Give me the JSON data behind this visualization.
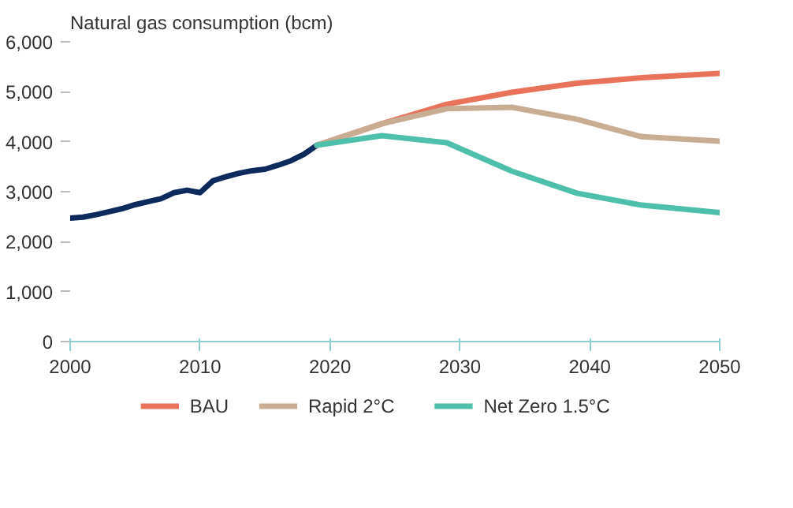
{
  "chart_data": {
    "type": "line",
    "ylabel": "Natural gas consumption (bcm)",
    "xlim": [
      2000,
      2050
    ],
    "xticks": [
      2000,
      2010,
      2020,
      2030,
      2040,
      2050
    ],
    "ylim": [
      0,
      6000
    ],
    "yticks": [
      {
        "value": 0,
        "label": "0"
      },
      {
        "value": 1000,
        "label": "1,000"
      },
      {
        "value": 2000,
        "label": "2,000"
      },
      {
        "value": 3000,
        "label": "3,000"
      },
      {
        "value": 4000,
        "label": "4,000"
      },
      {
        "value": 5000,
        "label": "5,000"
      },
      {
        "value": 6000,
        "label": "6,000"
      }
    ],
    "grid": false,
    "legend": "bottom",
    "line_style": "solid",
    "marker": "none",
    "series": [
      {
        "color": "#0d2a5c",
        "x": [
          2000,
          2001,
          2002,
          2003,
          2004,
          2005,
          2006,
          2007,
          2008,
          2009,
          2010,
          2011,
          2012,
          2013,
          2014,
          2015,
          2016,
          2017,
          2018,
          2019
        ],
        "values": [
          2470,
          2490,
          2540,
          2600,
          2660,
          2740,
          2800,
          2860,
          2980,
          3030,
          2980,
          3220,
          3300,
          3370,
          3420,
          3450,
          3530,
          3620,
          3750,
          3930
        ]
      },
      {
        "name": "BAU",
        "color": "#e8735a",
        "x": [
          2019,
          2024,
          2029,
          2034,
          2039,
          2044,
          2050
        ],
        "values": [
          3930,
          4360,
          4750,
          4990,
          5170,
          5280,
          5370
        ]
      },
      {
        "name": "Rapid 2°C",
        "color": "#c9ad93",
        "x": [
          2019,
          2024,
          2029,
          2034,
          2039,
          2044,
          2050
        ],
        "values": [
          3930,
          4360,
          4660,
          4690,
          4450,
          4100,
          4010
        ]
      },
      {
        "name": "Net Zero 1.5°C",
        "color": "#4dbfaa",
        "x": [
          2019,
          2024,
          2029,
          2034,
          2039,
          2044,
          2050
        ],
        "values": [
          3930,
          4120,
          3980,
          3410,
          2970,
          2730,
          2580
        ]
      }
    ]
  }
}
